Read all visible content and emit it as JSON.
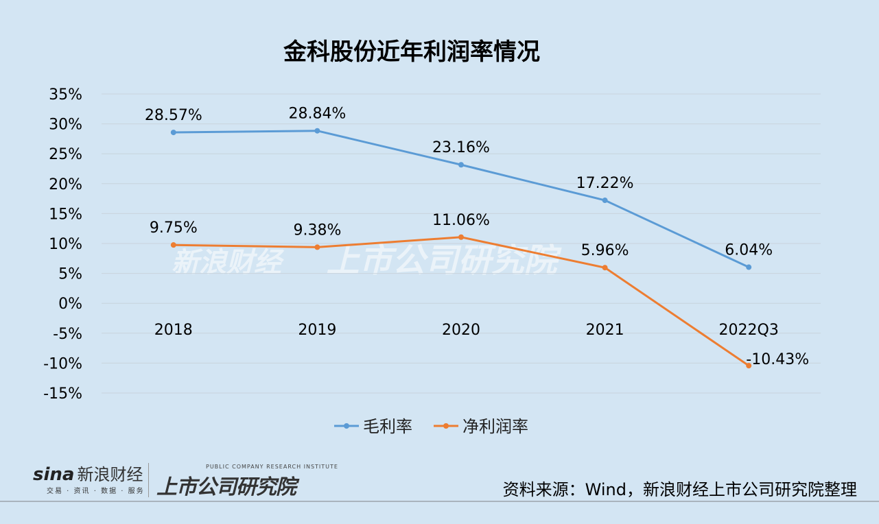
{
  "title": "金科股份近年利润率情况",
  "source": "资料来源：Wind，新浪财经上市公司研究院整理",
  "logos": {
    "sina_brand": "sina",
    "sina_cn": "新浪财经",
    "sina_sub": "交易 · 资讯 · 数据 · 服务",
    "institute_en": "PUBLIC COMPANY RESEARCH INSTITUTE",
    "institute_cn": "上市公司研究院"
  },
  "chart_data": {
    "type": "line",
    "title": "金科股份近年利润率情况",
    "categories": [
      "2018",
      "2019",
      "2020",
      "2021",
      "2022Q3"
    ],
    "series": [
      {
        "name": "毛利率",
        "color": "#5b9bd5",
        "values": [
          28.57,
          28.84,
          23.16,
          17.22,
          6.04
        ],
        "labels": [
          "28.57%",
          "28.84%",
          "23.16%",
          "17.22%",
          "6.04%"
        ]
      },
      {
        "name": "净利润率",
        "color": "#ed7d31",
        "values": [
          9.75,
          9.38,
          11.06,
          5.96,
          -10.43
        ],
        "labels": [
          "9.75%",
          "9.38%",
          "11.06%",
          "5.96%",
          "-10.43%"
        ]
      }
    ],
    "ylim": [
      -15,
      35
    ],
    "yticks": [
      35,
      30,
      25,
      20,
      15,
      10,
      5,
      0,
      -5,
      -10,
      -15
    ],
    "ytick_labels": [
      "35%",
      "30%",
      "25%",
      "20%",
      "15%",
      "10%",
      "5%",
      "0%",
      "-5%",
      "-10%",
      "-15%"
    ],
    "grid": true,
    "legend": "bottom"
  }
}
